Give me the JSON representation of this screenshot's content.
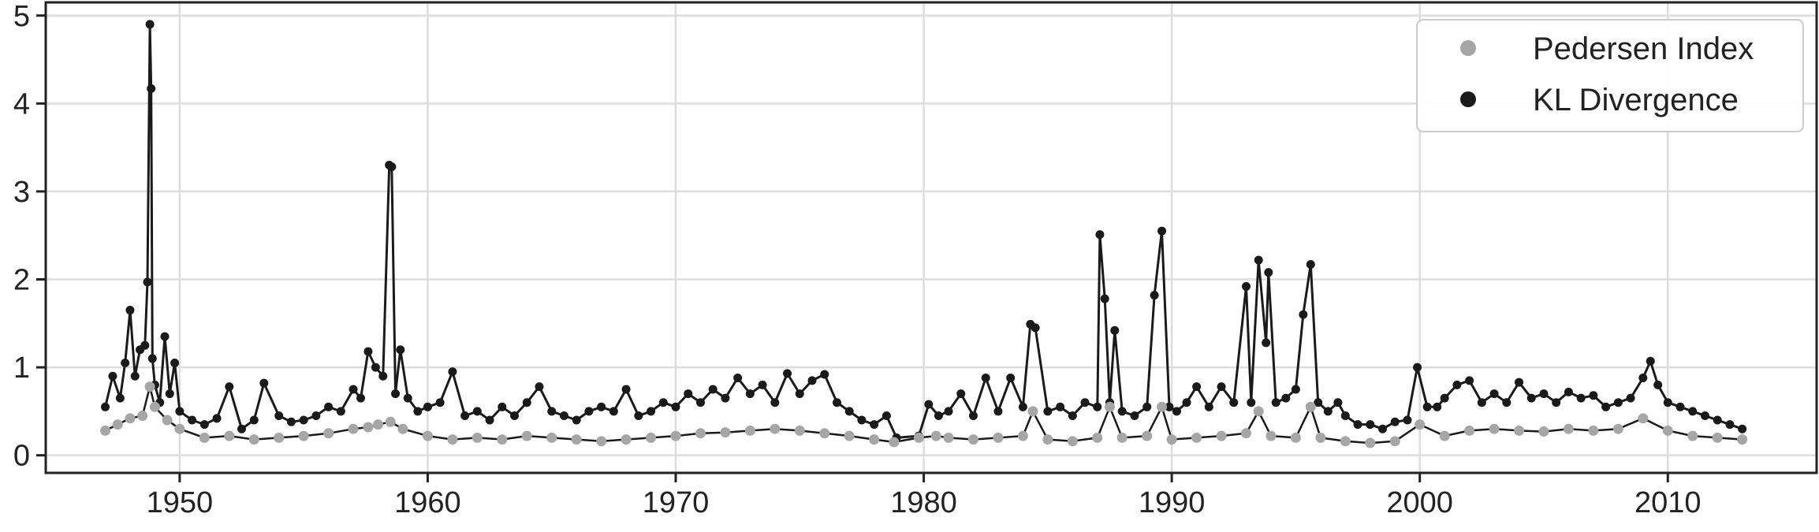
{
  "chart_data": {
    "type": "line",
    "title": "",
    "xlabel": "",
    "ylabel": "",
    "xlim": [
      1944.6,
      2016.0
    ],
    "ylim": [
      -0.2,
      5.15
    ],
    "grid": true,
    "legend_placement": "top-right",
    "x_ticks": [
      1950,
      1960,
      1970,
      1980,
      1990,
      2000,
      2010
    ],
    "x_tick_labels": [
      "1950",
      "1960",
      "1970",
      "1980",
      "1990",
      "2000",
      "2010"
    ],
    "y_ticks": [
      0,
      1,
      2,
      3,
      4,
      5
    ],
    "y_tick_labels": [
      "0",
      "1",
      "2",
      "3",
      "4",
      "5"
    ],
    "series": [
      {
        "name": "Pedersen Index",
        "color": "#a6a6a6",
        "marker": "circle",
        "x": [
          1947.0,
          1947.5,
          1948.0,
          1948.5,
          1948.8,
          1949.0,
          1949.5,
          1950.0,
          1951.0,
          1952.0,
          1953.0,
          1954.0,
          1955.0,
          1956.0,
          1957.0,
          1957.6,
          1958.0,
          1958.5,
          1959.0,
          1960.0,
          1961.0,
          1962.0,
          1963.0,
          1964.0,
          1965.0,
          1966.0,
          1967.0,
          1968.0,
          1969.0,
          1970.0,
          1971.0,
          1972.0,
          1973.0,
          1974.0,
          1975.0,
          1976.0,
          1977.0,
          1978.0,
          1978.8,
          1979.8,
          1980.5,
          1981.0,
          1982.0,
          1983.0,
          1984.0,
          1984.4,
          1985.0,
          1986.0,
          1987.0,
          1987.5,
          1988.0,
          1989.0,
          1989.6,
          1990.0,
          1991.0,
          1992.0,
          1993.0,
          1993.5,
          1994.0,
          1995.0,
          1995.6,
          1996.0,
          1997.0,
          1998.0,
          1999.0,
          2000.0,
          2001.0,
          2002.0,
          2003.0,
          2004.0,
          2005.0,
          2006.0,
          2007.0,
          2008.0,
          2009.0,
          2010.0,
          2011.0,
          2012.0,
          2013.0
        ],
        "y": [
          0.28,
          0.35,
          0.42,
          0.45,
          0.78,
          0.55,
          0.4,
          0.3,
          0.2,
          0.22,
          0.18,
          0.2,
          0.22,
          0.25,
          0.3,
          0.32,
          0.35,
          0.38,
          0.3,
          0.22,
          0.18,
          0.2,
          0.18,
          0.22,
          0.2,
          0.18,
          0.16,
          0.18,
          0.2,
          0.22,
          0.25,
          0.26,
          0.28,
          0.3,
          0.28,
          0.25,
          0.22,
          0.18,
          0.15,
          0.2,
          0.22,
          0.2,
          0.18,
          0.2,
          0.22,
          0.5,
          0.18,
          0.16,
          0.2,
          0.55,
          0.2,
          0.22,
          0.55,
          0.18,
          0.2,
          0.22,
          0.25,
          0.5,
          0.22,
          0.2,
          0.55,
          0.2,
          0.16,
          0.14,
          0.16,
          0.35,
          0.22,
          0.28,
          0.3,
          0.28,
          0.27,
          0.3,
          0.28,
          0.3,
          0.42,
          0.28,
          0.22,
          0.2,
          0.18
        ]
      },
      {
        "name": "KL Divergence",
        "color": "#1a1a1a",
        "marker": "circle",
        "x": [
          1947.0,
          1947.3,
          1947.6,
          1947.8,
          1948.0,
          1948.2,
          1948.4,
          1948.6,
          1948.7,
          1948.8,
          1948.85,
          1948.9,
          1949.0,
          1949.2,
          1949.4,
          1949.6,
          1949.8,
          1950.0,
          1950.5,
          1951.0,
          1951.5,
          1952.0,
          1952.5,
          1953.0,
          1953.4,
          1954.0,
          1954.5,
          1955.0,
          1955.5,
          1956.0,
          1956.5,
          1957.0,
          1957.3,
          1957.6,
          1957.9,
          1958.2,
          1958.45,
          1958.55,
          1958.7,
          1958.9,
          1959.2,
          1959.6,
          1960.0,
          1960.5,
          1961.0,
          1961.5,
          1962.0,
          1962.5,
          1963.0,
          1963.5,
          1964.0,
          1964.5,
          1965.0,
          1965.5,
          1966.0,
          1966.5,
          1967.0,
          1967.5,
          1968.0,
          1968.5,
          1969.0,
          1969.5,
          1970.0,
          1970.5,
          1971.0,
          1971.5,
          1972.0,
          1972.5,
          1973.0,
          1973.5,
          1974.0,
          1974.5,
          1975.0,
          1975.5,
          1976.0,
          1976.5,
          1977.0,
          1977.5,
          1978.0,
          1978.5,
          1978.9,
          1979.8,
          1980.2,
          1980.6,
          1981.0,
          1981.5,
          1982.0,
          1982.5,
          1983.0,
          1983.5,
          1984.0,
          1984.3,
          1984.5,
          1985.0,
          1985.5,
          1986.0,
          1986.5,
          1987.0,
          1987.1,
          1987.3,
          1987.5,
          1987.7,
          1988.0,
          1988.5,
          1989.0,
          1989.3,
          1989.6,
          1989.9,
          1990.2,
          1990.6,
          1991.0,
          1991.5,
          1992.0,
          1992.5,
          1993.0,
          1993.2,
          1993.5,
          1993.8,
          1993.9,
          1994.2,
          1994.6,
          1995.0,
          1995.3,
          1995.6,
          1995.9,
          1996.3,
          1996.7,
          1997.0,
          1997.5,
          1998.0,
          1998.5,
          1999.0,
          1999.5,
          1999.9,
          2000.3,
          2000.7,
          2001.0,
          2001.5,
          2002.0,
          2002.5,
          2003.0,
          2003.5,
          2004.0,
          2004.5,
          2005.0,
          2005.5,
          2006.0,
          2006.5,
          2007.0,
          2007.5,
          2008.0,
          2008.5,
          2009.0,
          2009.3,
          2009.6,
          2010.0,
          2010.5,
          2011.0,
          2011.5,
          2012.0,
          2012.5,
          2013.0
        ],
        "y": [
          0.55,
          0.9,
          0.65,
          1.05,
          1.65,
          0.9,
          1.2,
          1.25,
          1.97,
          4.9,
          4.17,
          1.1,
          0.8,
          0.6,
          1.35,
          0.7,
          1.05,
          0.5,
          0.4,
          0.35,
          0.42,
          0.78,
          0.3,
          0.4,
          0.82,
          0.45,
          0.38,
          0.4,
          0.45,
          0.55,
          0.5,
          0.75,
          0.65,
          1.18,
          1.0,
          0.9,
          3.3,
          3.28,
          0.7,
          1.2,
          0.65,
          0.5,
          0.55,
          0.6,
          0.95,
          0.45,
          0.5,
          0.4,
          0.55,
          0.45,
          0.6,
          0.78,
          0.5,
          0.45,
          0.4,
          0.5,
          0.55,
          0.5,
          0.75,
          0.45,
          0.5,
          0.6,
          0.55,
          0.7,
          0.6,
          0.75,
          0.65,
          0.88,
          0.7,
          0.8,
          0.6,
          0.93,
          0.7,
          0.85,
          0.92,
          0.6,
          0.5,
          0.4,
          0.35,
          0.45,
          0.2,
          0.22,
          0.58,
          0.45,
          0.5,
          0.7,
          0.45,
          0.88,
          0.5,
          0.88,
          0.55,
          1.49,
          1.45,
          0.5,
          0.55,
          0.45,
          0.6,
          0.55,
          2.51,
          1.78,
          0.6,
          1.42,
          0.5,
          0.45,
          0.55,
          1.82,
          2.55,
          0.55,
          0.5,
          0.6,
          0.78,
          0.55,
          0.78,
          0.6,
          1.92,
          0.6,
          2.22,
          1.28,
          2.08,
          0.6,
          0.65,
          0.75,
          1.6,
          2.17,
          0.6,
          0.5,
          0.6,
          0.45,
          0.35,
          0.35,
          0.3,
          0.38,
          0.4,
          1.0,
          0.55,
          0.55,
          0.65,
          0.8,
          0.85,
          0.6,
          0.7,
          0.6,
          0.83,
          0.65,
          0.7,
          0.6,
          0.72,
          0.65,
          0.68,
          0.55,
          0.6,
          0.65,
          0.88,
          1.07,
          0.8,
          0.6,
          0.55,
          0.5,
          0.45,
          0.4,
          0.35,
          0.3
        ]
      }
    ]
  }
}
